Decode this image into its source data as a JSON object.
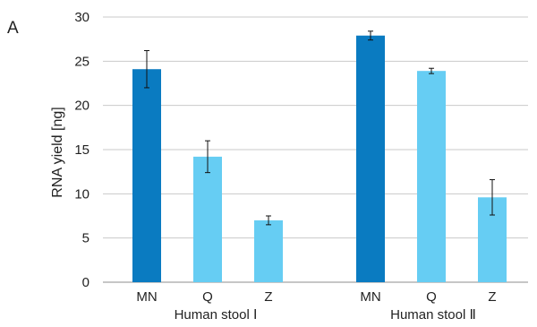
{
  "panel_label": "A",
  "chart_data": {
    "type": "bar",
    "title": "",
    "ylabel": "RNA yield [ng]",
    "xlabel": "",
    "ylim": [
      0,
      30
    ],
    "yticks": [
      0,
      5,
      10,
      15,
      20,
      25,
      30
    ],
    "grid": true,
    "groups": [
      {
        "label": "Human stool Ⅰ",
        "bars": [
          {
            "category": "MN",
            "value": 24.1,
            "error": 2.1,
            "color": "#0A7BC1"
          },
          {
            "category": "Q",
            "value": 14.2,
            "error": 1.8,
            "color": "#66CDF3"
          },
          {
            "category": "Z",
            "value": 7.0,
            "error": 0.5,
            "color": "#66CDF3"
          }
        ]
      },
      {
        "label": "Human stool Ⅱ",
        "bars": [
          {
            "category": "MN",
            "value": 27.9,
            "error": 0.5,
            "color": "#0A7BC1"
          },
          {
            "category": "Q",
            "value": 23.9,
            "error": 0.3,
            "color": "#66CDF3"
          },
          {
            "category": "Z",
            "value": 9.6,
            "error": 2.0,
            "color": "#66CDF3"
          }
        ]
      }
    ]
  }
}
